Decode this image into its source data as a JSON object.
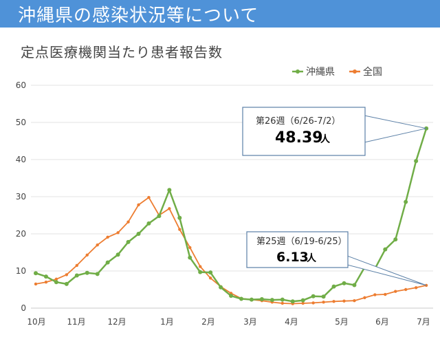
{
  "header": {
    "title": "沖縄県の感染状況等について"
  },
  "chart_data": {
    "type": "line",
    "title": "定点医療機関当たり患者報告数",
    "xlabel": "",
    "ylabel": "",
    "ylim": [
      0,
      60
    ],
    "yticks": [
      0,
      10,
      20,
      30,
      40,
      50,
      60
    ],
    "x_month_labels": [
      "10月",
      "11月",
      "12月",
      "1月",
      "2月",
      "3月",
      "4月",
      "5月",
      "6月",
      "7月"
    ],
    "grid": "horizontal",
    "legend_position": "top-right",
    "weeks": 41,
    "series": [
      {
        "name": "沖縄県",
        "color": "#70ad47",
        "values": [
          9.4,
          8.5,
          7.0,
          6.5,
          8.8,
          9.5,
          9.2,
          12.3,
          14.4,
          17.8,
          20.0,
          22.8,
          24.8,
          31.8,
          24.3,
          13.6,
          9.7,
          9.6,
          5.6,
          3.3,
          2.5,
          2.3,
          2.4,
          2.2,
          2.3,
          1.8,
          2.1,
          3.2,
          3.1,
          5.8,
          6.7,
          6.2,
          11.0,
          10.6,
          15.8,
          18.5,
          28.6,
          39.6,
          48.39
        ]
      },
      {
        "name": "全国",
        "color": "#ed7d31",
        "values": [
          6.5,
          7.0,
          7.8,
          9.0,
          11.5,
          14.3,
          17.0,
          19.1,
          20.3,
          23.2,
          27.8,
          29.8,
          25.0,
          26.8,
          21.2,
          16.3,
          11.2,
          8.1,
          5.8,
          4.0,
          2.6,
          2.3,
          2.0,
          1.6,
          1.3,
          1.2,
          1.3,
          1.4,
          1.6,
          1.8,
          1.9,
          2.0,
          2.8,
          3.6,
          3.7,
          4.5,
          5.0,
          5.5,
          6.13
        ]
      }
    ],
    "annotations": [
      {
        "title": "第26週（6/26-7/2）",
        "value": "48.39",
        "unit": "人",
        "series": "沖縄県"
      },
      {
        "title": "第25週（6/19-6/25）",
        "value": "6.13",
        "unit": "人",
        "series": "全国"
      }
    ]
  }
}
